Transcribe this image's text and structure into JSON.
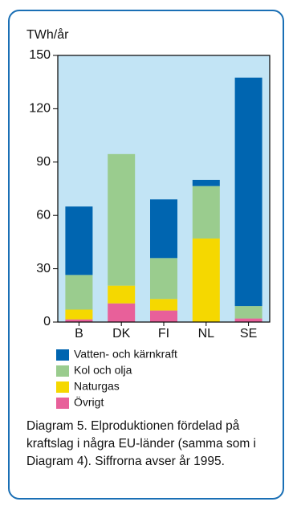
{
  "chart_data": {
    "type": "stacked-bar",
    "y_label": "TWh/år",
    "categories": [
      "B",
      "DK",
      "FI",
      "NL",
      "SE"
    ],
    "series": [
      {
        "name": "Övrigt",
        "color": "#e8609a",
        "values": [
          1.5,
          10.5,
          6.5,
          0,
          2
        ]
      },
      {
        "name": "Naturgas",
        "color": "#f5d800",
        "values": [
          5.5,
          10,
          6.5,
          47,
          0
        ]
      },
      {
        "name": "Kol och olja",
        "color": "#9acc8e",
        "values": [
          19.5,
          74,
          23,
          29.5,
          7
        ]
      },
      {
        "name": "Vatten- och kärnkraft",
        "color": "#0065b0",
        "values": [
          38.5,
          0,
          33,
          3.5,
          128.5
        ]
      }
    ],
    "ylim": [
      0,
      150
    ],
    "yticks": [
      0,
      30,
      60,
      90,
      120,
      150
    ],
    "plot_background": "#c2e4f5",
    "caption": "Diagram 5. Elproduktionen fördelad på kraftslag i några EU-länder (samma som i Diagram 4). Siffrorna avser år 1995."
  }
}
